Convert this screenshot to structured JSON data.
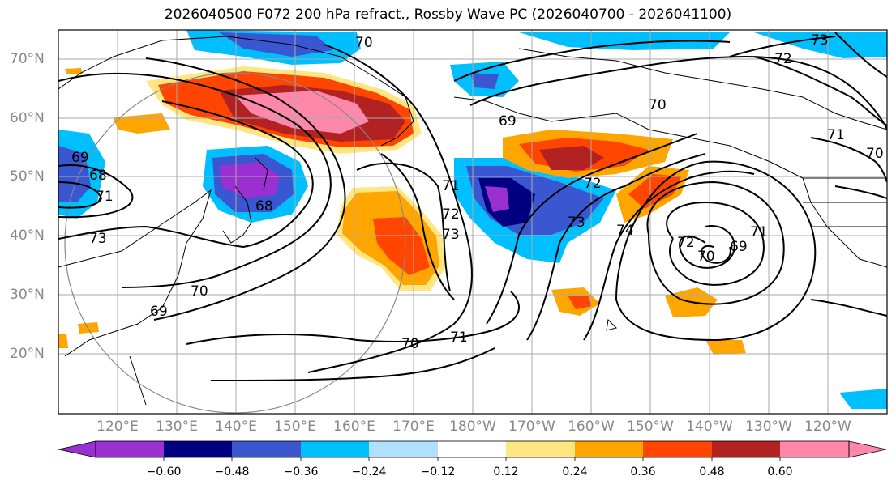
{
  "title": "2026040500 F072 200 hPa refract., Rossby Wave PC (2026040700 - 2026041100)",
  "lat_labels": [
    "70°N",
    "60°N",
    "50°N",
    "40°N",
    "30°N",
    "20°N"
  ],
  "lon_labels": [
    "120°E",
    "130°E",
    "140°E",
    "150°E",
    "160°E",
    "170°E",
    "180°W",
    "170°W",
    "160°W",
    "150°W",
    "140°W",
    "130°W",
    "120°W"
  ],
  "colorbar": {
    "tick_labels": [
      "−0.60",
      "−0.48",
      "−0.36",
      "−0.24",
      "−0.12",
      "0.12",
      "0.24",
      "0.36",
      "0.48",
      "0.60"
    ],
    "colors": [
      "#9b30d0",
      "#000080",
      "#3a56d0",
      "#00bfff",
      "#b0e0ff",
      "#ffffff",
      "#ffe680",
      "#ffa500",
      "#ff4500",
      "#b22222",
      "#ff88aa"
    ]
  },
  "contour_labels": [
    "70",
    "73",
    "72",
    "71",
    "70",
    "69",
    "70",
    "71",
    "72",
    "73",
    "74",
    "72",
    "70",
    "69",
    "71",
    "69",
    "68",
    "73",
    "71",
    "70",
    "69",
    "71",
    "70",
    "72",
    "73",
    "68"
  ],
  "shading_colors": {
    "purple": "#9b30d0",
    "navy": "#000080",
    "blue": "#3a56d0",
    "cyan": "#00bfff",
    "lightblue": "#b0e0ff",
    "yellow": "#ffe680",
    "orange": "#ffa500",
    "redorange": "#ff4500",
    "darkred": "#b22222",
    "pink": "#ff88aa"
  }
}
